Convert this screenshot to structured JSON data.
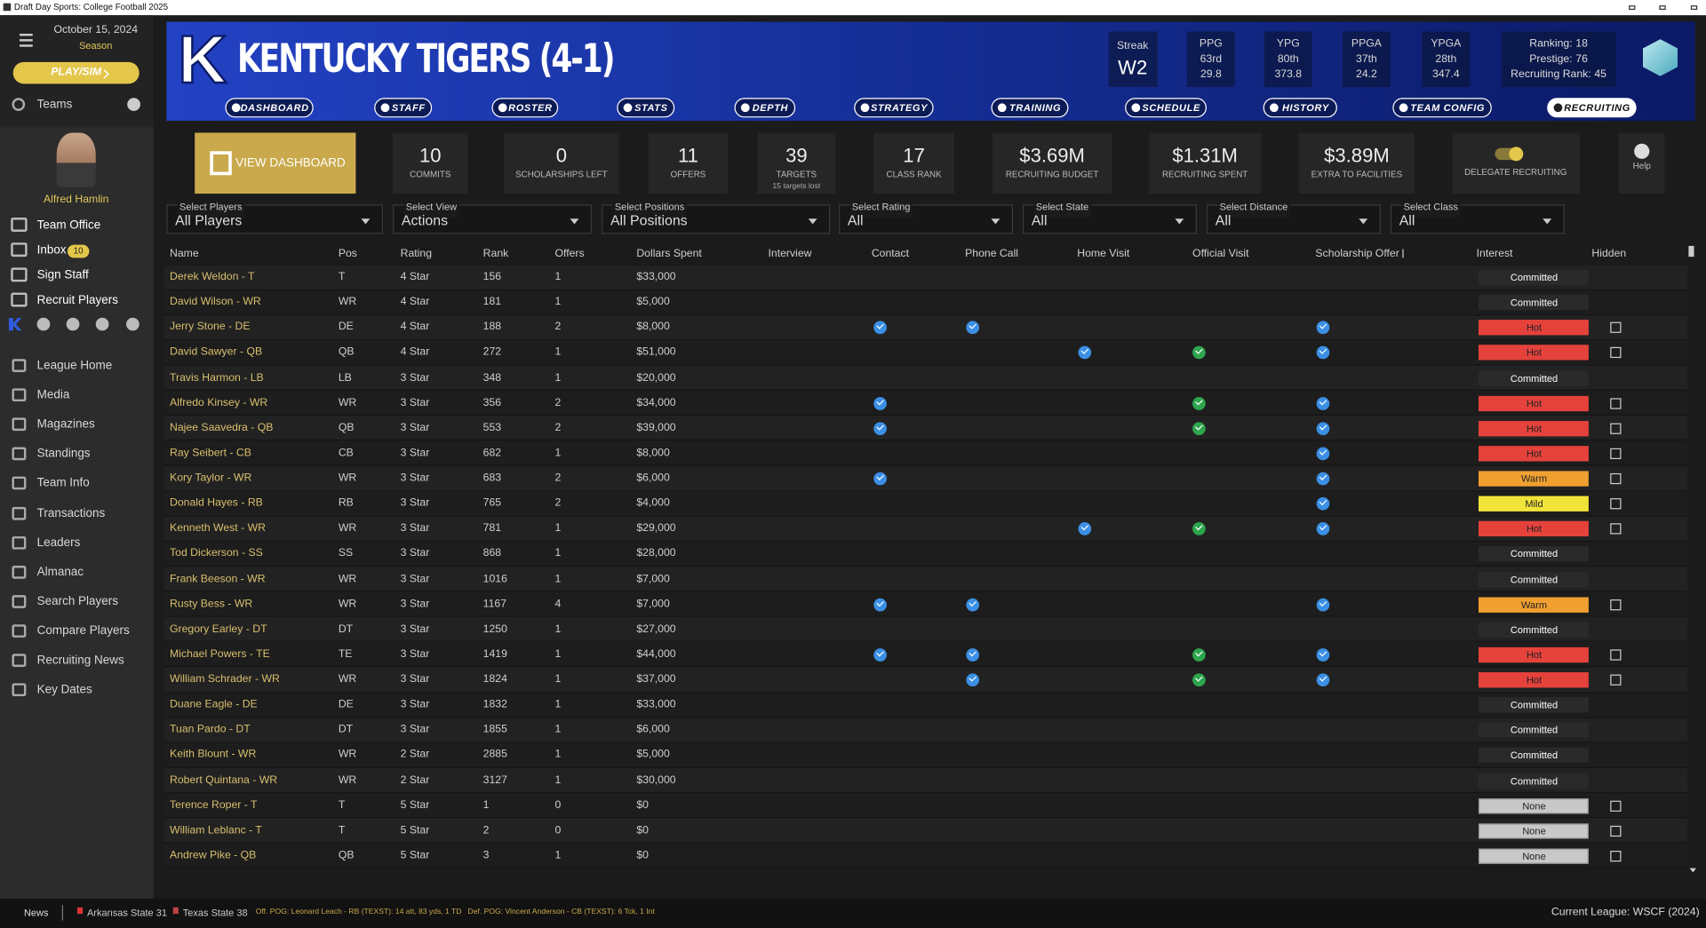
{
  "window_title": "Draft Day Sports: College Football 2025",
  "sidebar": {
    "date": "October 15, 2024",
    "phase": "Season",
    "play_button": "PLAY/SIM",
    "teams_label": "Teams",
    "coach_name": "Alfred Hamlin",
    "menu_top": [
      {
        "label": "Team Office"
      },
      {
        "label": "Inbox",
        "badge": 10
      },
      {
        "label": "Sign Staff"
      },
      {
        "label": "Recruit Players"
      }
    ],
    "menu": [
      "League Home",
      "Media",
      "Magazines",
      "Standings",
      "Team Info",
      "Transactions",
      "Leaders",
      "Almanac",
      "Search Players",
      "Compare Players",
      "Recruiting News",
      "Key Dates"
    ]
  },
  "header": {
    "logo_letter": "K",
    "team": "KENTUCKY TIGERS (4-1)",
    "streak": {
      "label": "Streak",
      "value": "W2"
    },
    "stats": [
      {
        "label": "PPG",
        "rank": "63rd",
        "value": 29.8
      },
      {
        "label": "YPG",
        "rank": "80th",
        "value": 373.8
      },
      {
        "label": "PPGA",
        "rank": "37th",
        "value": 24.2
      },
      {
        "label": "YPGA",
        "rank": "28th",
        "value": 347.4
      }
    ],
    "rankings": [
      {
        "label": "Ranking:",
        "value": 18
      },
      {
        "label": "Prestige:",
        "value": 76
      },
      {
        "label": "Recruiting Rank:",
        "value": 45
      }
    ],
    "tabs": [
      "DASHBOARD",
      "STAFF",
      "ROSTER",
      "STATS",
      "DEPTH",
      "STRATEGY",
      "TRAINING",
      "SCHEDULE",
      "HISTORY",
      "TEAM CONFIG",
      "RECRUITING"
    ],
    "active_tab": 10
  },
  "summary": {
    "button": "VIEW DASHBOARD",
    "tiles": [
      {
        "value": 10,
        "label": "COMMITS"
      },
      {
        "value": 0,
        "label": "SCHOLARSHIPS LEFT"
      },
      {
        "value": 11,
        "label": "OFFERS"
      },
      {
        "value": 39,
        "label": "TARGETS",
        "sub": "15 targets lost"
      },
      {
        "value": 17,
        "label": "CLASS RANK"
      },
      {
        "value": "$3.69M",
        "label": "RECRUITING BUDGET"
      },
      {
        "value": "$1.31M",
        "label": "RECRUITING SPENT"
      },
      {
        "value": "$3.89M",
        "label": "EXTRA TO FACILITIES"
      }
    ],
    "delegate": "DELEGATE RECRUITING",
    "help": "Help"
  },
  "filters": [
    {
      "label": "Select Players",
      "value": "All Players"
    },
    {
      "label": "Select View",
      "value": "Actions"
    },
    {
      "label": "Select Positions",
      "value": "All Positions"
    },
    {
      "label": "Select Rating",
      "value": "All"
    },
    {
      "label": "Select State",
      "value": "All"
    },
    {
      "label": "Select Distance",
      "value": "All"
    },
    {
      "label": "Select Class",
      "value": "All"
    }
  ],
  "table": {
    "columns": [
      "Name",
      "Pos",
      "Rating",
      "Rank",
      "Offers",
      "Dollars Spent",
      "Interview",
      "Contact",
      "Phone Call",
      "Home Visit",
      "Official Visit",
      "Scholarship Offer",
      "Interest",
      "Hidden"
    ],
    "interest_colors": {
      "Committed": "#2a2a2a",
      "Hot": "#e5423c",
      "Warm": "#f0a030",
      "Mild": "#f2e33a",
      "None": "#c8c8c8"
    },
    "rows": [
      [
        "Derek Weldon - T",
        "T",
        "4 Star",
        156,
        1,
        "$33,000",
        false,
        false,
        false,
        false,
        false,
        false,
        "Committed",
        null
      ],
      [
        "David Wilson - WR",
        "WR",
        "4 Star",
        181,
        1,
        "$5,000",
        false,
        false,
        false,
        false,
        false,
        false,
        "Committed",
        null
      ],
      [
        "Jerry Stone - DE",
        "DE",
        "4 Star",
        188,
        2,
        "$8,000",
        false,
        true,
        true,
        false,
        false,
        true,
        "Hot",
        false
      ],
      [
        "David Sawyer - QB",
        "QB",
        "4 Star",
        272,
        1,
        "$51,000",
        false,
        false,
        false,
        true,
        true,
        true,
        "Hot",
        false
      ],
      [
        "Travis Harmon - LB",
        "LB",
        "3 Star",
        348,
        1,
        "$20,000",
        false,
        false,
        false,
        false,
        false,
        false,
        "Committed",
        null
      ],
      [
        "Alfredo Kinsey - WR",
        "WR",
        "3 Star",
        356,
        2,
        "$34,000",
        false,
        true,
        false,
        false,
        true,
        true,
        "Hot",
        false
      ],
      [
        "Najee Saavedra - QB",
        "QB",
        "3 Star",
        553,
        2,
        "$39,000",
        false,
        true,
        false,
        false,
        true,
        true,
        "Hot",
        false
      ],
      [
        "Ray Seibert - CB",
        "CB",
        "3 Star",
        682,
        1,
        "$8,000",
        false,
        false,
        false,
        false,
        false,
        true,
        "Hot",
        false
      ],
      [
        "Kory Taylor - WR",
        "WR",
        "3 Star",
        683,
        2,
        "$6,000",
        false,
        true,
        false,
        false,
        false,
        true,
        "Warm",
        false
      ],
      [
        "Donald Hayes - RB",
        "RB",
        "3 Star",
        765,
        2,
        "$4,000",
        false,
        false,
        false,
        false,
        false,
        true,
        "Mild",
        false
      ],
      [
        "Kenneth West - WR",
        "WR",
        "3 Star",
        781,
        1,
        "$29,000",
        false,
        false,
        false,
        true,
        true,
        true,
        "Hot",
        false
      ],
      [
        "Tod Dickerson - SS",
        "SS",
        "3 Star",
        868,
        1,
        "$28,000",
        false,
        false,
        false,
        false,
        false,
        false,
        "Committed",
        null
      ],
      [
        "Frank Beeson - WR",
        "WR",
        "3 Star",
        1016,
        1,
        "$7,000",
        false,
        false,
        false,
        false,
        false,
        false,
        "Committed",
        null
      ],
      [
        "Rusty Bess - WR",
        "WR",
        "3 Star",
        1167,
        4,
        "$7,000",
        false,
        true,
        true,
        false,
        false,
        true,
        "Warm",
        false
      ],
      [
        "Gregory Earley - DT",
        "DT",
        "3 Star",
        1250,
        1,
        "$27,000",
        false,
        false,
        false,
        false,
        false,
        false,
        "Committed",
        null
      ],
      [
        "Michael Powers - TE",
        "TE",
        "3 Star",
        1419,
        1,
        "$44,000",
        false,
        true,
        true,
        false,
        true,
        true,
        "Hot",
        false
      ],
      [
        "William Schrader - WR",
        "WR",
        "3 Star",
        1824,
        1,
        "$37,000",
        false,
        false,
        true,
        false,
        true,
        true,
        "Hot",
        false
      ],
      [
        "Duane Eagle - DE",
        "DE",
        "3 Star",
        1832,
        1,
        "$33,000",
        false,
        false,
        false,
        false,
        false,
        false,
        "Committed",
        null
      ],
      [
        "Tuan Pardo - DT",
        "DT",
        "3 Star",
        1855,
        1,
        "$6,000",
        false,
        false,
        false,
        false,
        false,
        false,
        "Committed",
        null
      ],
      [
        "Keith Blount - WR",
        "WR",
        "2 Star",
        2885,
        1,
        "$5,000",
        false,
        false,
        false,
        false,
        false,
        false,
        "Committed",
        null
      ],
      [
        "Robert Quintana - WR",
        "WR",
        "2 Star",
        3127,
        1,
        "$30,000",
        false,
        false,
        false,
        false,
        false,
        false,
        "Committed",
        null
      ],
      [
        "Terence Roper - T",
        "T",
        "5 Star",
        1,
        0,
        "$0",
        false,
        false,
        false,
        false,
        false,
        false,
        "None",
        false
      ],
      [
        "William Leblanc - T",
        "T",
        "5 Star",
        2,
        0,
        "$0",
        false,
        false,
        false,
        false,
        false,
        false,
        "None",
        false
      ],
      [
        "Andrew Pike - QB",
        "QB",
        "5 Star",
        3,
        1,
        "$0",
        false,
        false,
        false,
        false,
        false,
        false,
        "None",
        false
      ]
    ]
  },
  "footer": {
    "news": "News",
    "away": "Arkansas State 31",
    "home": "Texas State 38",
    "off_pog": "Off. POG: Leonard Leach - RB (TEXST): 14 att, 83 yds, 1 TD",
    "def_pog": "Def. POG: Vincent Anderson - CB (TEXST): 6 Tck, 1 Int",
    "league": "Current League: WSCF (2024)"
  }
}
